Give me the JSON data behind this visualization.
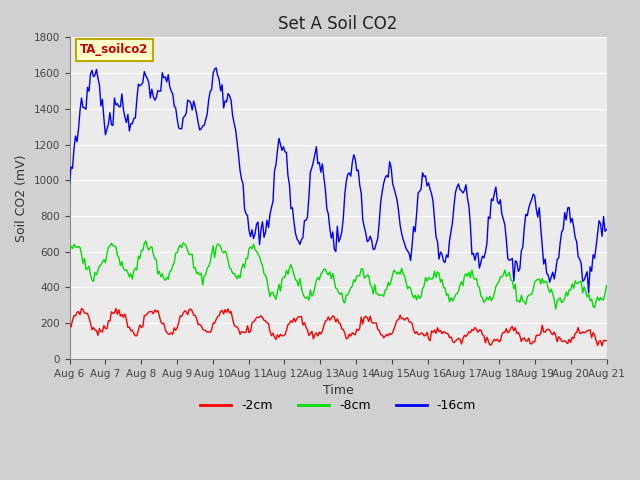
{
  "title": "Set A Soil CO2",
  "ylabel": "Soil CO2 (mV)",
  "xlabel": "Time",
  "legend_label": "TA_soilco2",
  "series_labels": [
    "-2cm",
    "-8cm",
    "-16cm"
  ],
  "series_colors": [
    "#ff0000",
    "#00dd00",
    "#0000ff"
  ],
  "ylim": [
    0,
    1800
  ],
  "yticks": [
    0,
    200,
    400,
    600,
    800,
    1000,
    1200,
    1400,
    1600,
    1800
  ],
  "xtick_labels": [
    "Aug 6",
    "Aug 7",
    "Aug 8",
    "Aug 9",
    "Aug 10",
    "Aug 11",
    "Aug 12",
    "Aug 13",
    "Aug 14",
    "Aug 15",
    "Aug 16",
    "Aug 17",
    "Aug 18",
    "Aug 19",
    "Aug 20",
    "Aug 21"
  ],
  "plot_bg_color": "#ebebeb",
  "fig_bg_color": "#d0d0d0",
  "grid_color": "#ffffff",
  "legend_box_facecolor": "#ffffcc",
  "legend_box_edgecolor": "#bbaa00",
  "title_fontsize": 12,
  "label_fontsize": 9,
  "tick_fontsize": 7.5
}
